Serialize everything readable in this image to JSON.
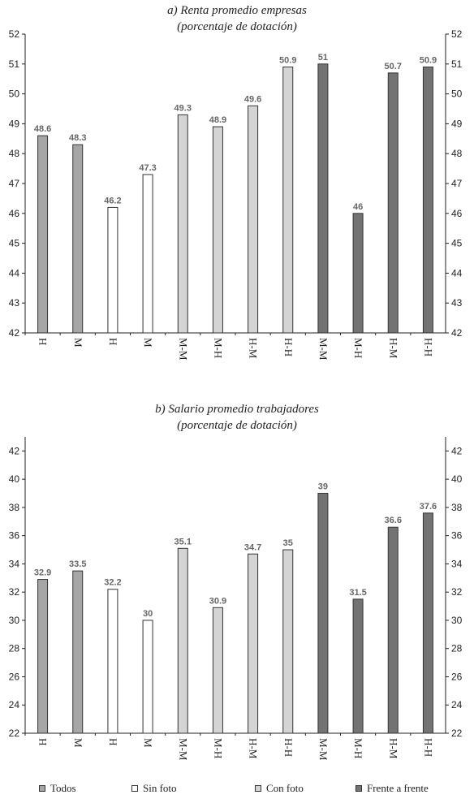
{
  "colors": {
    "Todos": "#a6a6a6",
    "Sin foto": "#ffffff",
    "Con foto": "#d4d4d4",
    "Frente a frente": "#737373"
  },
  "legend": [
    {
      "label": "Todos",
      "group": "Todos"
    },
    {
      "label": "Sin foto",
      "group": "Sin foto"
    },
    {
      "label": "Con foto",
      "group": "Con foto"
    },
    {
      "label": "Frente a frente",
      "group": "Frente a frente"
    }
  ],
  "chart_data": [
    {
      "type": "bar",
      "title": "a) Renta promedio empresas",
      "subtitle": "(porcentaje de dotación)",
      "categories": [
        "H",
        "M",
        "H",
        "M",
        "M-M",
        "M-H",
        "H-M",
        "H-H",
        "M-M",
        "M-H",
        "H-M",
        "H-H"
      ],
      "groups": [
        "Todos",
        "Todos",
        "Sin foto",
        "Sin foto",
        "Con foto",
        "Con foto",
        "Con foto",
        "Con foto",
        "Frente a frente",
        "Frente a frente",
        "Frente a frente",
        "Frente a frente"
      ],
      "values": [
        48.6,
        48.3,
        46.2,
        47.3,
        49.3,
        48.9,
        49.6,
        50.9,
        51,
        46,
        50.7,
        50.9
      ],
      "ylim": [
        42,
        52
      ],
      "yticks": [
        42,
        43,
        44,
        45,
        46,
        47,
        48,
        49,
        50,
        51,
        52
      ],
      "grid": false,
      "dual_y_axis": true
    },
    {
      "type": "bar",
      "title": "b) Salario promedio trabajadores",
      "subtitle": "(porcentaje de dotación)",
      "categories": [
        "H",
        "M",
        "H",
        "M",
        "M-M",
        "M-H",
        "H-M",
        "H-H",
        "M-M",
        "M-H",
        "H-M",
        "H-H"
      ],
      "groups": [
        "Todos",
        "Todos",
        "Sin foto",
        "Sin foto",
        "Con foto",
        "Con foto",
        "Con foto",
        "Con foto",
        "Frente a frente",
        "Frente a frente",
        "Frente a frente",
        "Frente a frente"
      ],
      "values": [
        32.9,
        33.5,
        32.2,
        30,
        35.1,
        30.9,
        34.7,
        35,
        39,
        31.5,
        36.6,
        37.6
      ],
      "ylim": [
        22,
        43
      ],
      "yticks": [
        22,
        24,
        26,
        28,
        30,
        32,
        34,
        36,
        38,
        40,
        42
      ],
      "grid": false,
      "dual_y_axis": true
    }
  ]
}
